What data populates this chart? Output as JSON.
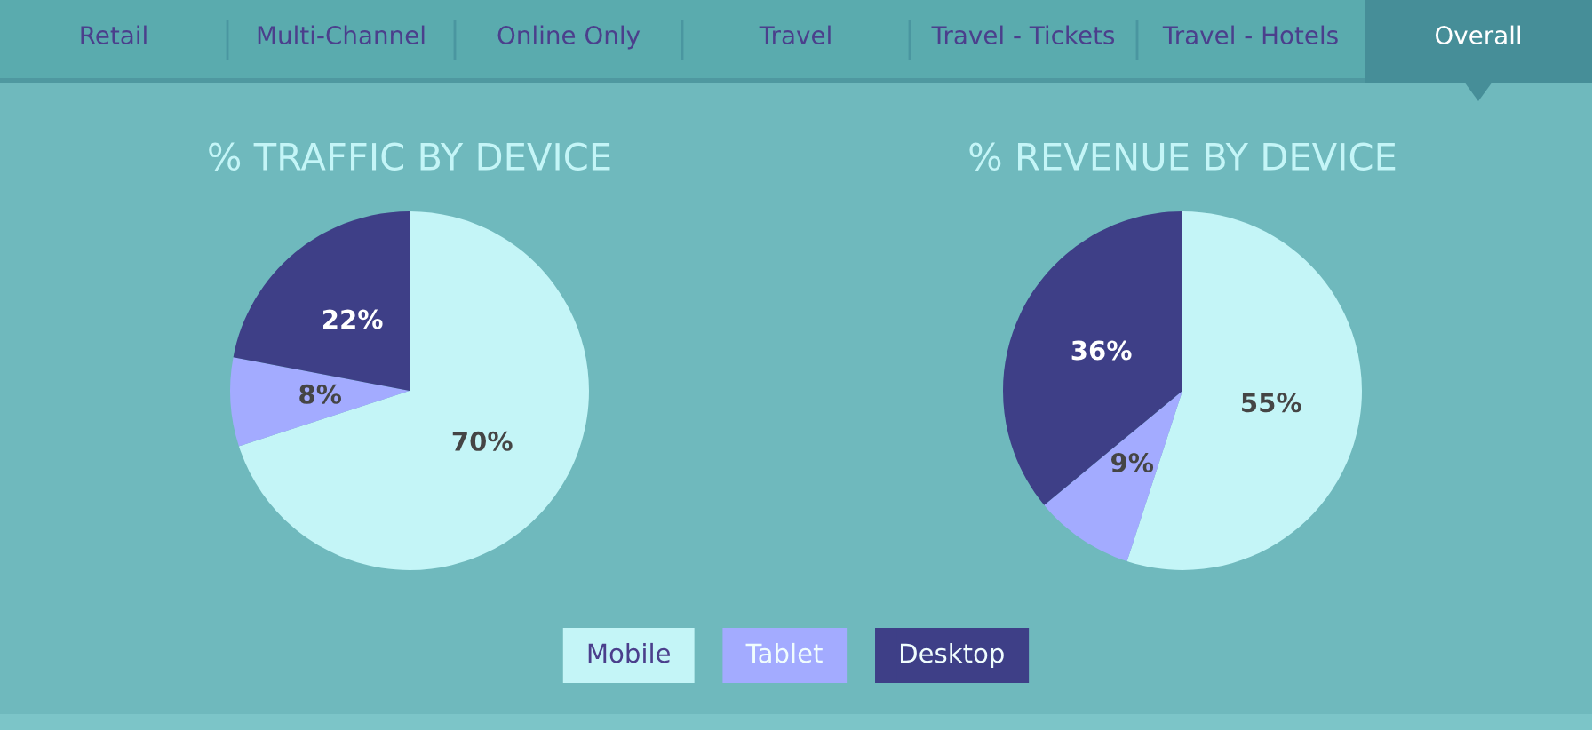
{
  "chart_data": [
    {
      "type": "other",
      "annotations": [
        "Retail",
        "Multi-Channel",
        "Online Only",
        "Travel",
        "Travel - Tickets",
        "Travel - Hotels",
        "Overall"
      ]
    },
    {
      "type": "pie",
      "title": "% TRAFFIC BY DEVICE",
      "categories": [
        "Mobile",
        "Tablet",
        "Desktop"
      ],
      "values": [
        70,
        8,
        22
      ],
      "colors": [
        "#c4f5f7",
        "#a3abff",
        "#3e3f87"
      ],
      "value_labels": [
        "70%",
        "8%",
        "22%"
      ],
      "legend": "bottom"
    },
    {
      "type": "pie",
      "title": "% REVENUE BY DEVICE",
      "values": [
        55,
        9,
        36
      ],
      "colors": [
        "#c4f5f7",
        "#a3abff",
        "#3e3f87"
      ],
      "value_labels": [
        "55%",
        "9%",
        "36%"
      ]
    }
  ]
}
